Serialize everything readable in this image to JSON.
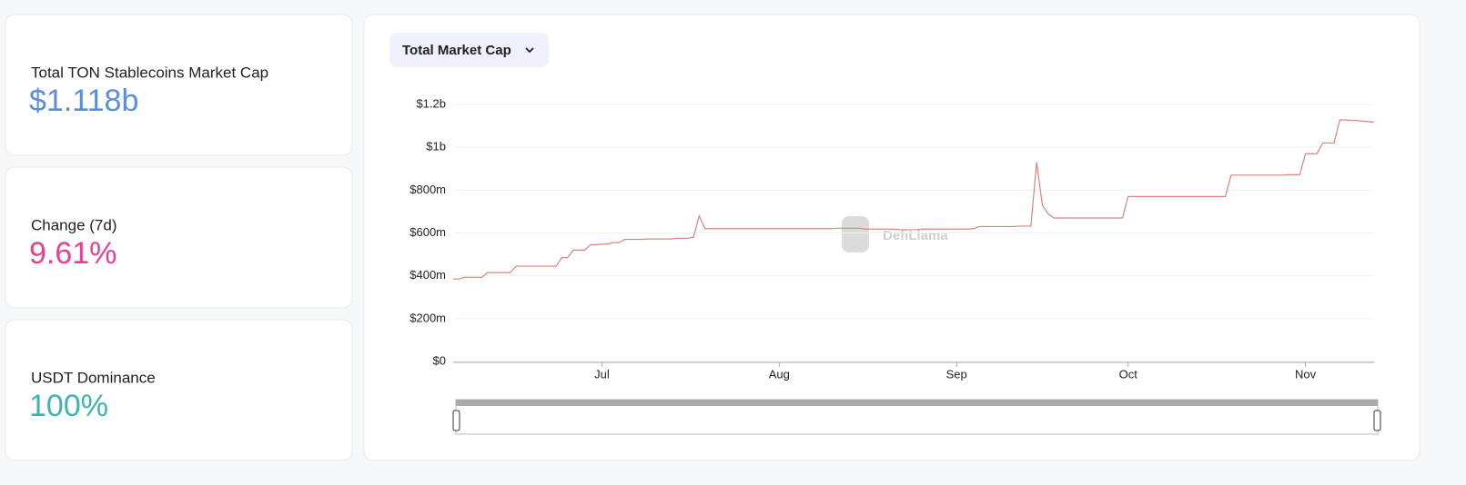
{
  "cards": [
    {
      "label": "Total TON Stablecoins Market Cap",
      "value": "$1.118b"
    },
    {
      "label": "Change (7d)",
      "value": "9.61%"
    },
    {
      "label": "USDT Dominance",
      "value": "100%"
    }
  ],
  "dropdown": "Total Market Cap",
  "watermark": "DefiLlama",
  "chart_data": {
    "type": "line",
    "color": "#d9837d",
    "grid": true,
    "categories": [
      null,
      null,
      null,
      null,
      null,
      null,
      null,
      null,
      null,
      null,
      null,
      null,
      null,
      null,
      null,
      null,
      null,
      null,
      null,
      null,
      null,
      null,
      null,
      null,
      null,
      null,
      "Jul",
      null,
      null,
      null,
      null,
      null,
      null,
      null,
      null,
      null,
      null,
      null,
      null,
      null,
      null,
      null,
      null,
      null,
      null,
      null,
      null,
      null,
      null,
      null,
      null,
      null,
      null,
      null,
      null,
      null,
      null,
      "Aug",
      null,
      null,
      null,
      null,
      null,
      null,
      null,
      null,
      null,
      null,
      null,
      null,
      null,
      null,
      null,
      null,
      null,
      null,
      null,
      null,
      null,
      null,
      null,
      null,
      null,
      null,
      null,
      null,
      null,
      null,
      "Sep",
      null,
      null,
      null,
      null,
      null,
      null,
      null,
      null,
      null,
      null,
      null,
      null,
      null,
      null,
      null,
      null,
      null,
      null,
      null,
      null,
      null,
      null,
      null,
      null,
      null,
      null,
      null,
      null,
      null,
      "Oct",
      null,
      null,
      null,
      null,
      null,
      null,
      null,
      null,
      null,
      null,
      null,
      null,
      null,
      null,
      null,
      null,
      null,
      null,
      null,
      null,
      null,
      null,
      null,
      null,
      null,
      null,
      null,
      null,
      null,
      null,
      "Nov",
      null,
      null,
      null,
      null,
      null,
      null,
      null,
      null,
      null,
      null,
      null,
      null
    ],
    "values": [
      385000000.0,
      385000000.0,
      393000000.0,
      393000000.0,
      393000000.0,
      393000000.0,
      415000000.0,
      415000000.0,
      415000000.0,
      415000000.0,
      415000000.0,
      445000000.0,
      445000000.0,
      445000000.0,
      445000000.0,
      445000000.0,
      445000000.0,
      445000000.0,
      445000000.0,
      485000000.0,
      485000000.0,
      520000000.0,
      520000000.0,
      520000000.0,
      545000000.0,
      545000000.0,
      548000000.0,
      548000000.0,
      555000000.0,
      555000000.0,
      570000000.0,
      570000000.0,
      570000000.0,
      570000000.0,
      572000000.0,
      572000000.0,
      572000000.0,
      572000000.0,
      572000000.0,
      575000000.0,
      575000000.0,
      575000000.0,
      580000000.0,
      680000000.0,
      620000000.0,
      620000000.0,
      620000000.0,
      620000000.0,
      620000000.0,
      620000000.0,
      620000000.0,
      620000000.0,
      620000000.0,
      620000000.0,
      620000000.0,
      620000000.0,
      620000000.0,
      620000000.0,
      620000000.0,
      620000000.0,
      620000000.0,
      620000000.0,
      620000000.0,
      620000000.0,
      620000000.0,
      620000000.0,
      620000000.0,
      622000000.0,
      622000000.0,
      622000000.0,
      622000000.0,
      622000000.0,
      618000000.0,
      618000000.0,
      618000000.0,
      618000000.0,
      618000000.0,
      618000000.0,
      615000000.0,
      615000000.0,
      615000000.0,
      615000000.0,
      618000000.0,
      618000000.0,
      618000000.0,
      618000000.0,
      618000000.0,
      618000000.0,
      618000000.0,
      618000000.0,
      618000000.0,
      620000000.0,
      630000000.0,
      630000000.0,
      630000000.0,
      630000000.0,
      630000000.0,
      630000000.0,
      630000000.0,
      632000000.0,
      632000000.0,
      632000000.0,
      930000000.0,
      730000000.0,
      690000000.0,
      670000000.0,
      670000000.0,
      670000000.0,
      670000000.0,
      670000000.0,
      670000000.0,
      670000000.0,
      670000000.0,
      670000000.0,
      670000000.0,
      670000000.0,
      670000000.0,
      670000000.0,
      770000000.0,
      770000000.0,
      770000000.0,
      770000000.0,
      770000000.0,
      770000000.0,
      770000000.0,
      770000000.0,
      770000000.0,
      770000000.0,
      770000000.0,
      770000000.0,
      770000000.0,
      770000000.0,
      770000000.0,
      770000000.0,
      770000000.0,
      770000000.0,
      870000000.0,
      870000000.0,
      870000000.0,
      870000000.0,
      870000000.0,
      870000000.0,
      870000000.0,
      870000000.0,
      870000000.0,
      870000000.0,
      872000000.0,
      872000000.0,
      872000000.0,
      970000000.0,
      970000000.0,
      970000000.0,
      1020000000.0,
      1020000000.0,
      1020000000.0,
      1128000000.0,
      1128000000.0,
      1125000000.0,
      1125000000.0,
      1122000000.0,
      1120000000.0,
      1118000000.0
    ],
    "ylim": [
      0,
      1200000000.0
    ],
    "yticks": [
      {
        "value": 0,
        "label": "$0"
      },
      {
        "value": 200000000.0,
        "label": "$200m"
      },
      {
        "value": 400000000.0,
        "label": "$400m"
      },
      {
        "value": 600000000.0,
        "label": "$600m"
      },
      {
        "value": 800000000.0,
        "label": "$800m"
      },
      {
        "value": 1000000000.0,
        "label": "$1b"
      },
      {
        "value": 1200000000.0,
        "label": "$1.2b"
      }
    ]
  }
}
